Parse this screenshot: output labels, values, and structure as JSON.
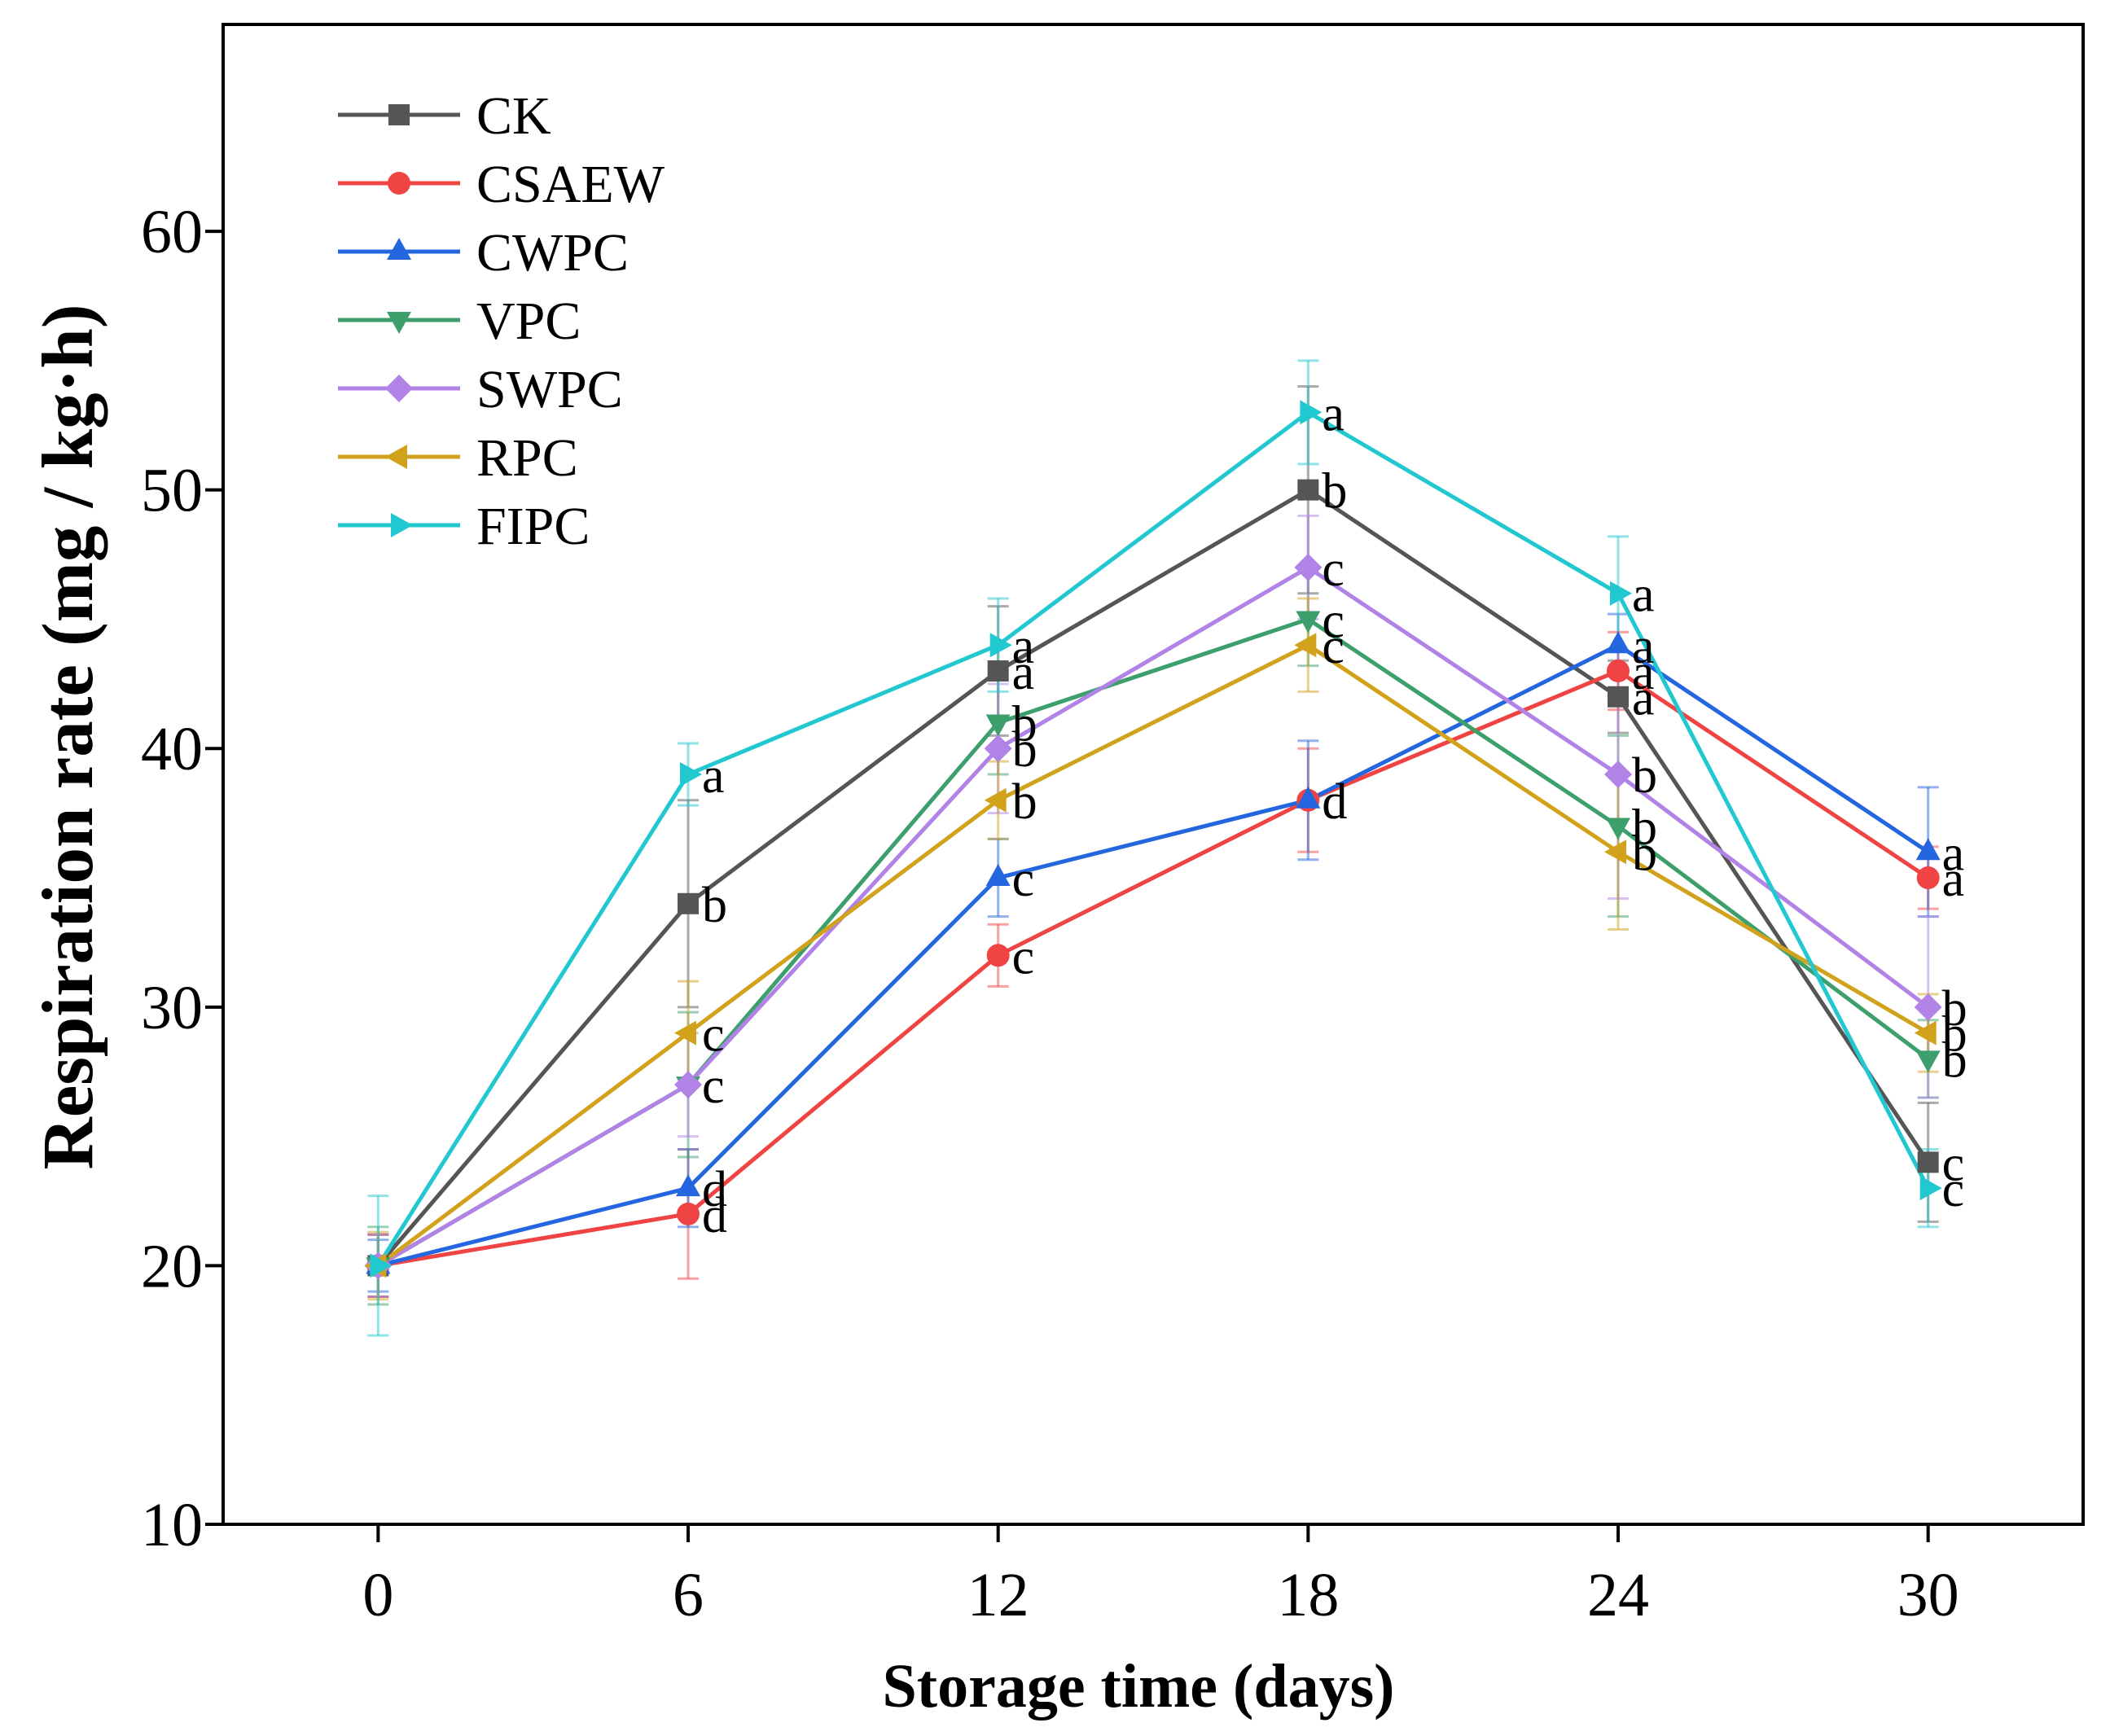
{
  "chart_data": {
    "type": "line",
    "title": "",
    "xlabel": "Storage time (days)",
    "ylabel": "Respiration rate (mg / kg·h)",
    "x": [
      0,
      6,
      12,
      18,
      24,
      30
    ],
    "xlim": [
      -3,
      33
    ],
    "ylim": [
      10,
      68
    ],
    "xticks": [
      0,
      6,
      12,
      18,
      24,
      30
    ],
    "xtick_labels": [
      "0",
      "6",
      "12",
      "18",
      "24",
      "30"
    ],
    "yticks": [
      10,
      20,
      30,
      40,
      50,
      60
    ],
    "ytick_labels": [
      "10",
      "20",
      "30",
      "40",
      "50",
      "60"
    ],
    "grid": false,
    "legend_position": "top-left",
    "series": [
      {
        "name": "CK",
        "color": "#555555",
        "marker": "square",
        "values": [
          20,
          34,
          43,
          50,
          42,
          24
        ],
        "errors": [
          1.2,
          4,
          2.5,
          4,
          1.4,
          2.3
        ],
        "labels": [
          "",
          "b",
          "a",
          "b",
          "a",
          "c"
        ]
      },
      {
        "name": "CSAEW",
        "color": "#f04444",
        "marker": "circle",
        "values": [
          20,
          22,
          32,
          38,
          43,
          35
        ],
        "errors": [
          1.2,
          2.5,
          1.2,
          2,
          1.5,
          1.2
        ],
        "labels": [
          "",
          "d",
          "c",
          "d",
          "a",
          "a"
        ]
      },
      {
        "name": "CWPC",
        "color": "#2466e0",
        "marker": "triangle-up",
        "values": [
          20,
          23,
          35,
          38,
          44,
          36
        ],
        "errors": [
          1,
          1.5,
          1.5,
          2.3,
          1.2,
          2.5
        ],
        "labels": [
          "",
          "d",
          "c",
          "d",
          "a",
          "a"
        ]
      },
      {
        "name": "VPC",
        "color": "#3c9f6c",
        "marker": "triangle-down",
        "values": [
          20,
          27,
          41,
          45,
          37,
          28
        ],
        "errors": [
          1.5,
          2.8,
          2,
          1.8,
          3.5,
          1.5
        ],
        "labels": [
          "",
          "c",
          "b",
          "c",
          "b",
          "b"
        ]
      },
      {
        "name": "SWPC",
        "color": "#b283e6",
        "marker": "diamond",
        "values": [
          20,
          27,
          40,
          47,
          39,
          30
        ],
        "errors": [
          1.2,
          2,
          2.5,
          2,
          4.8,
          3.5
        ],
        "labels": [
          "",
          "c",
          "b",
          "c",
          "b",
          "b"
        ]
      },
      {
        "name": "RPC",
        "color": "#d2a21c",
        "marker": "triangle-left",
        "values": [
          20,
          29,
          38,
          44,
          36,
          29
        ],
        "errors": [
          1.3,
          2,
          1.5,
          1.8,
          3,
          1.5
        ],
        "labels": [
          "",
          "c",
          "b",
          "c",
          "b",
          "b"
        ]
      },
      {
        "name": "FIPC",
        "color": "#22c8d0",
        "marker": "triangle-right",
        "values": [
          20,
          39,
          44,
          53,
          46,
          23
        ],
        "errors": [
          2.7,
          1.2,
          1.8,
          2,
          2.2,
          1.5
        ],
        "labels": [
          "",
          "a",
          "a",
          "a",
          "a",
          "c"
        ]
      }
    ]
  }
}
